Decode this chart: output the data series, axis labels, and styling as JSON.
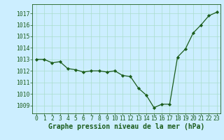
{
  "x": [
    0,
    1,
    2,
    3,
    4,
    5,
    6,
    7,
    8,
    9,
    10,
    11,
    12,
    13,
    14,
    15,
    16,
    17,
    18,
    19,
    20,
    21,
    22,
    23
  ],
  "y": [
    1013.0,
    1013.0,
    1012.7,
    1012.8,
    1012.2,
    1012.1,
    1011.9,
    1012.0,
    1012.0,
    1011.9,
    1012.0,
    1011.6,
    1011.5,
    1010.5,
    1009.9,
    1008.8,
    1009.1,
    1009.1,
    1013.2,
    1013.9,
    1015.3,
    1016.0,
    1016.8,
    1017.1
  ],
  "line_color": "#1a5c1a",
  "marker": "D",
  "marker_size": 2.2,
  "bg_color": "#cceeff",
  "grid_color": "#aaddcc",
  "xlabel": "Graphe pression niveau de la mer (hPa)",
  "xlabel_fontsize": 7.0,
  "ylabel_ticks": [
    1009,
    1010,
    1011,
    1012,
    1013,
    1014,
    1015,
    1016,
    1017
  ],
  "ylim": [
    1008.3,
    1017.8
  ],
  "xlim": [
    -0.5,
    23.5
  ],
  "tick_fontsize": 5.8,
  "tick_color": "#1a5c1a",
  "linewidth": 0.9
}
